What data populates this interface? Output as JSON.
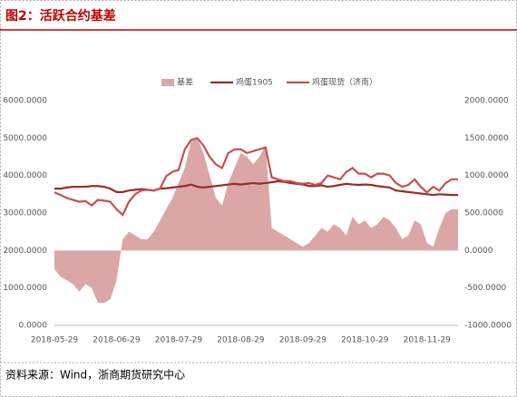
{
  "chart_data": {
    "type": "combo",
    "title": "图2：活跃合约基差",
    "source": "资料来源：Wind，浙商期货研究中心",
    "categories": [
      "2018-05-29",
      null,
      null,
      null,
      null,
      null,
      null,
      null,
      null,
      null,
      "2018-06-29",
      null,
      null,
      null,
      null,
      null,
      null,
      null,
      null,
      null,
      "2018-07-29",
      null,
      null,
      null,
      null,
      null,
      null,
      null,
      null,
      null,
      "2018-08-29",
      null,
      null,
      null,
      null,
      null,
      null,
      null,
      null,
      null,
      "2018-09-29",
      null,
      null,
      null,
      null,
      null,
      null,
      null,
      null,
      null,
      "2018-10-29",
      null,
      null,
      null,
      null,
      null,
      null,
      null,
      null,
      null,
      "2018-11-29",
      null,
      null,
      null,
      null,
      null
    ],
    "series": [
      {
        "name": "基差",
        "kind": "area",
        "axis": "y2",
        "color": "#dba6a6",
        "values": [
          -250,
          -350,
          -400,
          -450,
          -550,
          -450,
          -500,
          -700,
          -700,
          -650,
          -400,
          150,
          250,
          200,
          150,
          150,
          250,
          400,
          550,
          700,
          900,
          1100,
          1450,
          1500,
          1300,
          1000,
          700,
          600,
          900,
          1100,
          1300,
          1250,
          1150,
          1250,
          1400,
          300,
          250,
          200,
          150,
          100,
          50,
          100,
          200,
          300,
          250,
          350,
          300,
          200,
          450,
          350,
          400,
          300,
          350,
          450,
          400,
          300,
          150,
          200,
          400,
          350,
          100,
          50,
          300,
          500,
          550,
          550
        ]
      },
      {
        "name": "鸡蛋1905",
        "kind": "line",
        "color": "#9b2b2b",
        "values": [
          3650,
          3650,
          3680,
          3700,
          3700,
          3700,
          3720,
          3720,
          3700,
          3650,
          3560,
          3560,
          3600,
          3620,
          3640,
          3620,
          3600,
          3650,
          3660,
          3680,
          3700,
          3720,
          3760,
          3700,
          3680,
          3700,
          3720,
          3740,
          3760,
          3780,
          3760,
          3780,
          3800,
          3780,
          3800,
          3820,
          3850,
          3830,
          3800,
          3780,
          3760,
          3720,
          3720,
          3740,
          3700,
          3720,
          3750,
          3780,
          3760,
          3750,
          3760,
          3750,
          3720,
          3700,
          3680,
          3600,
          3580,
          3560,
          3540,
          3520,
          3500,
          3480,
          3500,
          3490,
          3480,
          3480
        ]
      },
      {
        "name": "鸡蛋现货（济南）",
        "kind": "line",
        "color": "#c5504d",
        "values": [
          3550,
          3480,
          3400,
          3350,
          3300,
          3320,
          3200,
          3350,
          3330,
          3300,
          3100,
          2950,
          3300,
          3500,
          3600,
          3620,
          3600,
          3650,
          3980,
          4100,
          4150,
          4700,
          4950,
          5000,
          4800,
          4500,
          4300,
          4200,
          4600,
          4700,
          4700,
          4600,
          4650,
          4700,
          4750,
          3950,
          3900,
          3850,
          3850,
          3800,
          3780,
          3800,
          3750,
          3800,
          4000,
          3950,
          3900,
          4100,
          4200,
          4050,
          4050,
          3950,
          4050,
          4050,
          4000,
          3800,
          3700,
          3750,
          3900,
          3700,
          3550,
          3700,
          3600,
          3800,
          3900,
          3900
        ]
      }
    ],
    "ylim": [
      0,
      6000
    ],
    "yticks": [
      {
        "value": 0,
        "label": "0.0000"
      },
      {
        "value": 1000,
        "label": "1000.0000"
      },
      {
        "value": 2000,
        "label": "2000.0000"
      },
      {
        "value": 3000,
        "label": "3000.0000"
      },
      {
        "value": 4000,
        "label": "4000.0000"
      },
      {
        "value": 5000,
        "label": "5000.0000"
      },
      {
        "value": 6000,
        "label": "6000.0000"
      }
    ],
    "y2lim": [
      -1000,
      2000
    ],
    "y2ticks": [
      {
        "value": -1000,
        "label": "-1000.0000"
      },
      {
        "value": -500,
        "label": "-500.0000"
      },
      {
        "value": 0,
        "label": "0.0000"
      },
      {
        "value": 500,
        "label": "500.0000"
      },
      {
        "value": 1000,
        "label": "1000.0000"
      },
      {
        "value": 1500,
        "label": "1500.0000"
      },
      {
        "value": 2000,
        "label": "2000.0000"
      }
    ],
    "grid": false
  }
}
